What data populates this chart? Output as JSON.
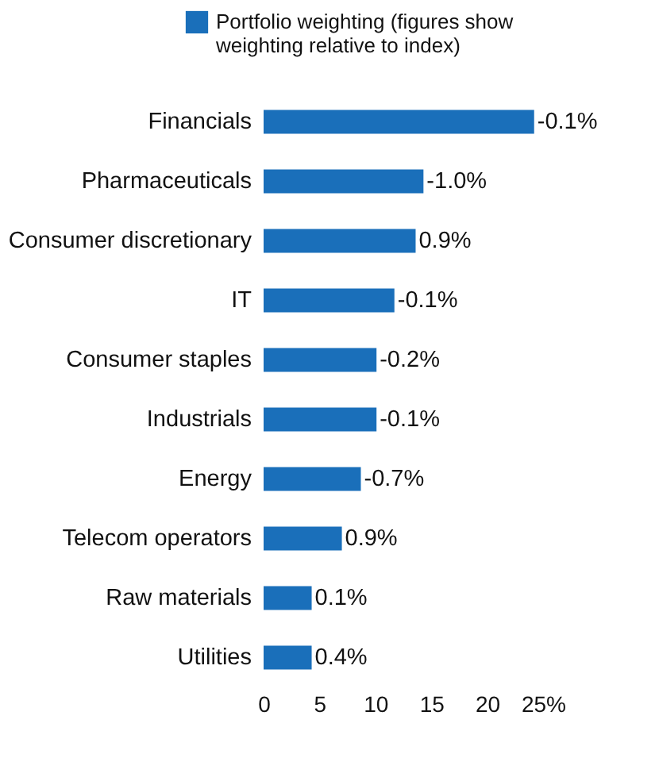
{
  "chart_data": {
    "type": "bar",
    "orientation": "horizontal",
    "categories": [
      "Financials",
      "Pharmaceuticals",
      "Consumer discretionary",
      "IT",
      "Consumer staples",
      "Industrials",
      "Energy",
      "Telecom operators",
      "Raw materials",
      "Utilities"
    ],
    "series": [
      {
        "name": "Portfolio weighting (figures show weighting relative to index)",
        "color": "#1a6fba",
        "values": [
          24.2,
          14.3,
          13.6,
          11.7,
          10.1,
          10.1,
          8.7,
          7.0,
          4.3,
          4.3
        ]
      }
    ],
    "value_labels": [
      "-0.1%",
      "-1.0%",
      "0.9%",
      "-0.1%",
      "-0.2%",
      "-0.1%",
      "-0.7%",
      "0.9%",
      "0.1%",
      "0.4%"
    ],
    "xlim": [
      0,
      25
    ],
    "xticks": [
      0,
      5,
      10,
      15,
      20,
      {
        "value": 25,
        "label": "25%"
      }
    ],
    "grid": false,
    "legend": "top"
  }
}
